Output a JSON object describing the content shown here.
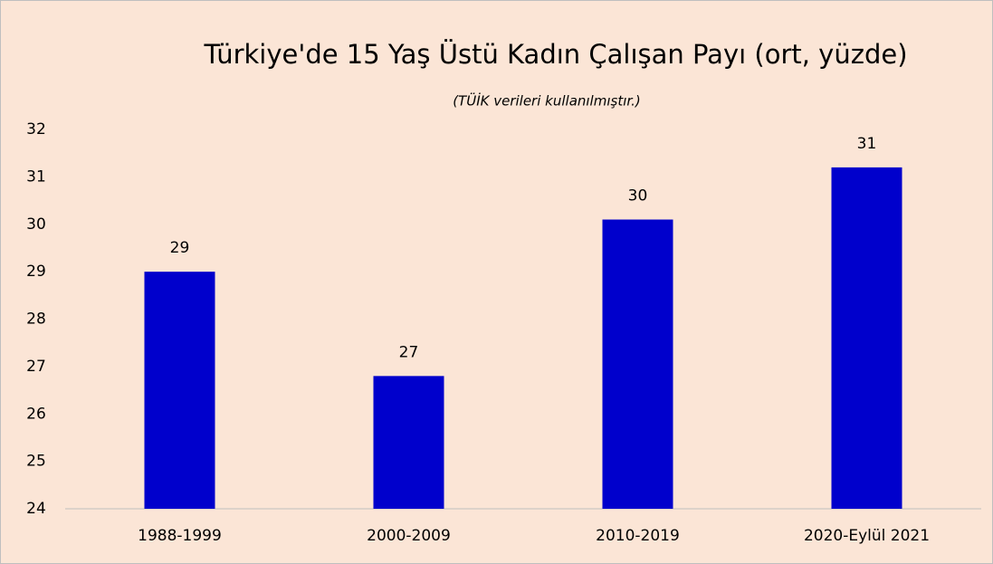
{
  "chart_data": {
    "type": "bar",
    "title": "Türkiye'de 15 Yaş Üstü Kadın Çalışan Payı (ort, yüzde)",
    "subtitle": "(TÜİK verileri kullanılmıştır.)",
    "categories": [
      "1988-1999",
      "2000-2009",
      "2010-2019",
      "2020-Eylül 2021"
    ],
    "values": [
      29.0,
      26.8,
      30.1,
      31.2
    ],
    "value_labels": [
      "29",
      "27",
      "30",
      "31"
    ],
    "color": "#0000cc",
    "ylim": [
      24,
      32
    ],
    "yticks": [
      24,
      25,
      26,
      27,
      28,
      29,
      30,
      31,
      32
    ],
    "grid": false
  }
}
